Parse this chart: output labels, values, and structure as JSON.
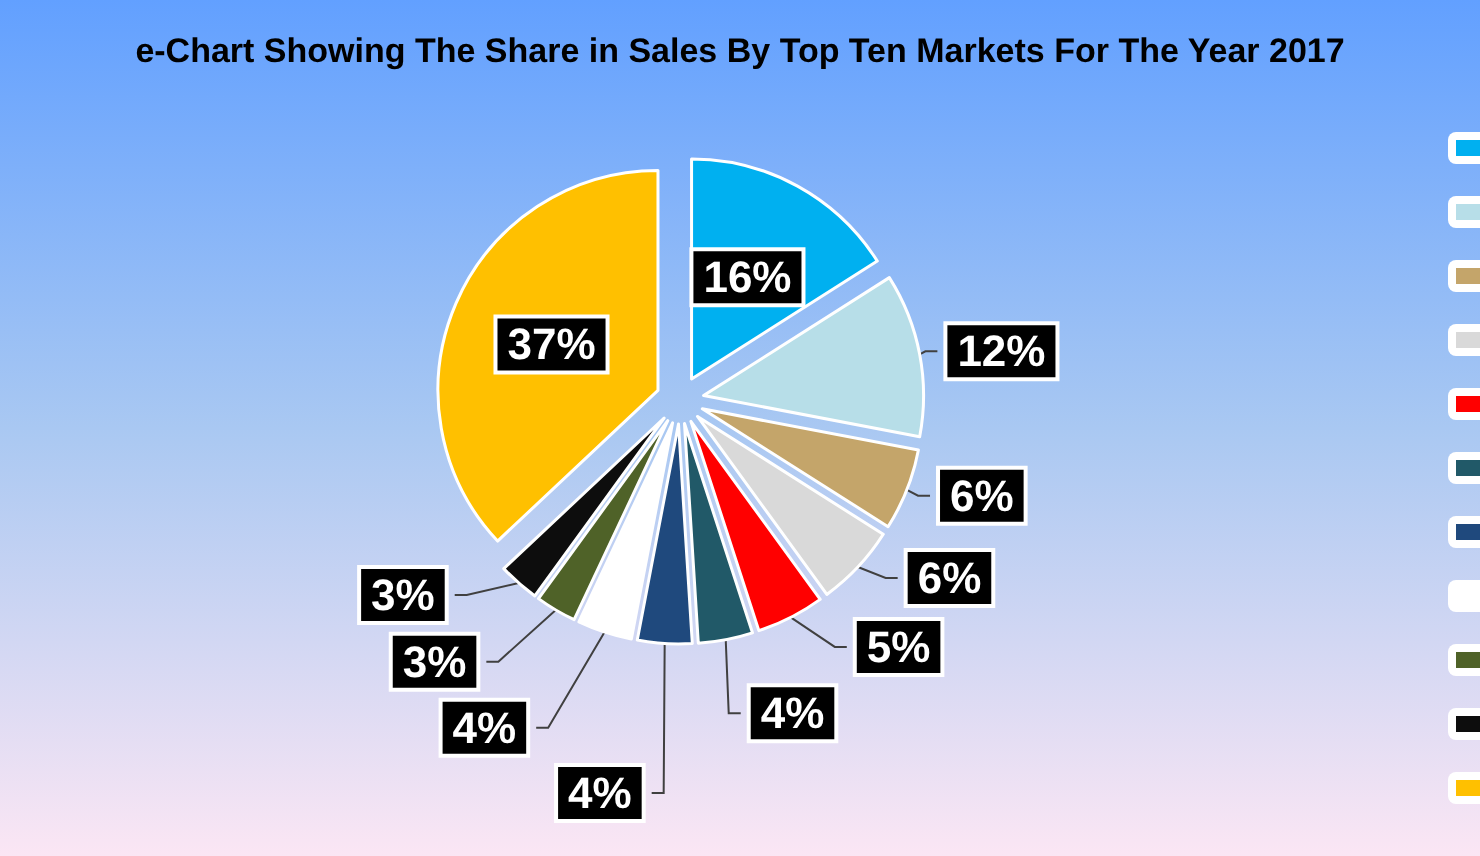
{
  "chart_data": {
    "type": "pie",
    "title": "e-Chart Showing The Share in Sales By Top Ten Markets For The Year 2017",
    "categories": [
      null,
      null,
      null,
      null,
      null,
      null,
      null,
      null,
      null,
      null,
      null
    ],
    "values": [
      16,
      12,
      6,
      6,
      5,
      4,
      4,
      4,
      3,
      3,
      37
    ],
    "colors": [
      "#00b0f0",
      "#b7dee8",
      "#c4a56a",
      "#d9d9d9",
      "#ff0000",
      "#215968",
      "#1f497d",
      "#ffffff",
      "#4f6228",
      "#0d0d0d",
      "#ffc000"
    ],
    "value_labels": [
      "16%",
      "12%",
      "6%",
      "6%",
      "5%",
      "4%",
      "4%",
      "4%",
      "3%",
      "3%",
      "37%"
    ]
  }
}
